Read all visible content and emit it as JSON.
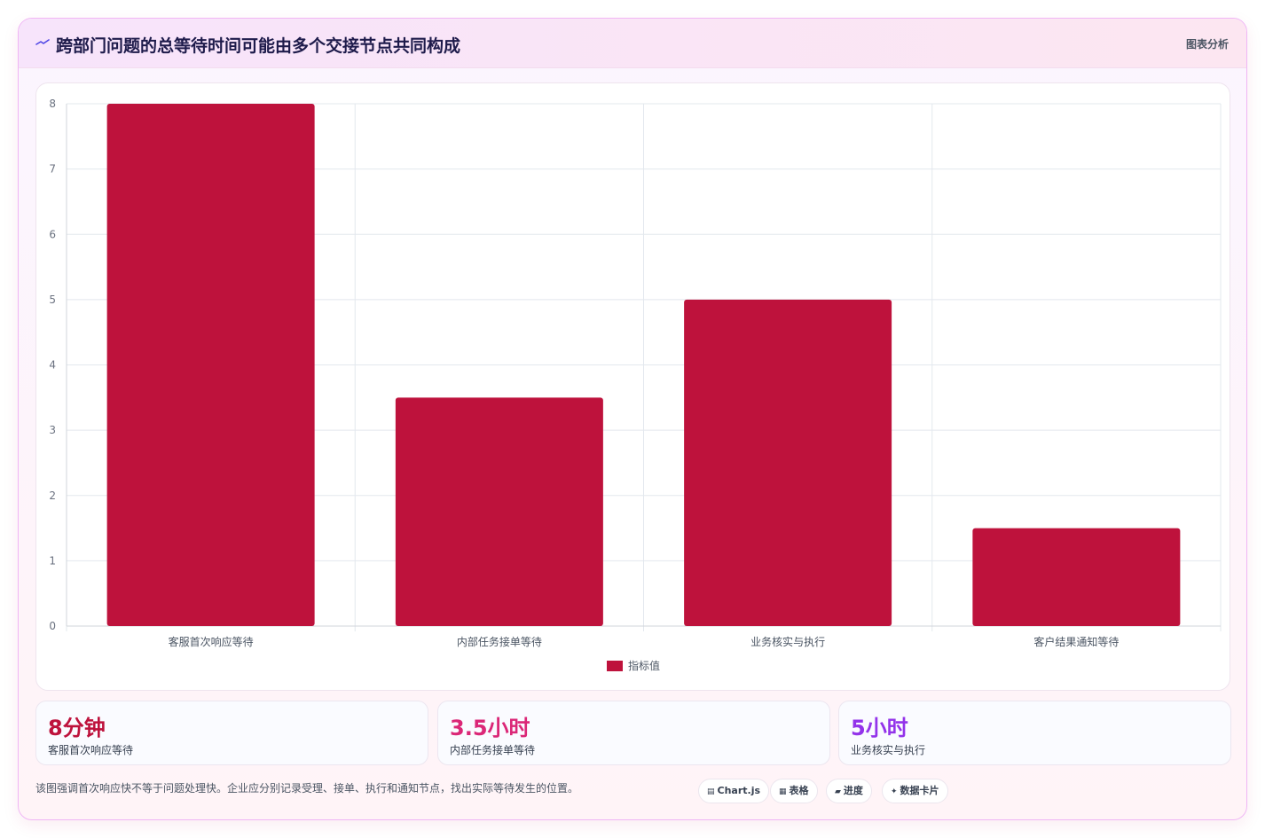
{
  "header": {
    "title": "跨部门问题的总等待时间可能由多个交接节点共同构成",
    "tag": "图表分析",
    "icon": "trend-icon"
  },
  "chart_data": {
    "type": "bar",
    "categories": [
      "客服首次响应等待",
      "内部任务接单等待",
      "业务核实与执行",
      "客户结果通知等待"
    ],
    "series": [
      {
        "name": "指标值",
        "values": [
          8,
          3.5,
          5,
          1.5
        ]
      }
    ],
    "ylim": [
      0,
      8
    ],
    "yticks": [
      0,
      1,
      2,
      3,
      4,
      5,
      6,
      7,
      8
    ],
    "grid": true,
    "legend": "bottom",
    "bar_color": "#be123c"
  },
  "stats": [
    {
      "value": "8分钟",
      "label": "客服首次响应等待",
      "color": "#be123c"
    },
    {
      "value": "3.5小时",
      "label": "内部任务接单等待",
      "color": "#db2777"
    },
    {
      "value": "5小时",
      "label": "业务核实与执行",
      "color": "#9333ea"
    }
  ],
  "footer": {
    "note": "该图强调首次响应快不等于问题处理快。企业应分别记录受理、接单、执行和通知节点，找出实际等待发生的位置。",
    "pills": [
      {
        "icon": "▤",
        "label": "Chart.js"
      },
      {
        "icon": "▦",
        "label": "表格"
      },
      {
        "icon": "▰",
        "label": "进度"
      },
      {
        "icon": "✦",
        "label": "数据卡片"
      }
    ]
  }
}
